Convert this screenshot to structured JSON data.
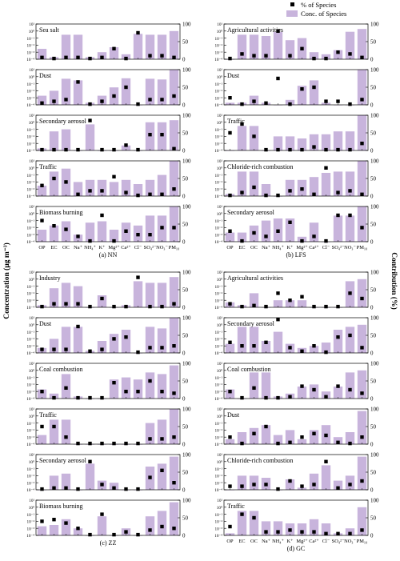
{
  "legend": {
    "pct_label": "% of Species",
    "conc_label": "Conc. of Species"
  },
  "axes": {
    "left_label": "Concentration (μg m⁻³)",
    "right_label": "Contribution (%)"
  },
  "colors": {
    "bar": "#c8b4dc",
    "marker": "#000000"
  },
  "chart_data": {
    "type": "bar",
    "categories": [
      "OP",
      "EC",
      "OC",
      "Na+",
      "NH4+",
      "K+",
      "Mg2+",
      "Ca2+",
      "Cl-",
      "SO42-",
      "NO3-",
      "PM10"
    ],
    "y_scale_left": "log",
    "ylim_left": [
      0.0001,
      10
    ],
    "left_ticks": [
      "10⁻⁴",
      "10⁻³",
      "10⁻²",
      "10⁻¹",
      "10⁰",
      "10¹"
    ],
    "ylim_right": [
      0,
      100
    ],
    "right_ticks": [
      "0",
      "50",
      "100"
    ],
    "groups": [
      {
        "caption": "(a) NN",
        "show_xlabels": true,
        "profiles": [
          {
            "name": "Sea salt",
            "conc": [
              0.003,
              0.0002,
              0.3,
              0.3,
              0.0002,
              0.001,
              0.005,
              0.0005,
              0.4,
              0.3,
              0.3,
              1.0
            ],
            "pct": [
              5,
              2,
              5,
              5,
              2,
              5,
              30,
              2,
              75,
              10,
              10,
              5
            ]
          },
          {
            "name": "Dust",
            "conc": [
              0.002,
              0.01,
              0.5,
              0.3,
              0.0002,
              0.002,
              0.03,
              0.6,
              0.0001,
              0.5,
              0.4,
              10
            ],
            "pct": [
              5,
              10,
              15,
              65,
              2,
              10,
              25,
              50,
              2,
              15,
              15,
              25
            ]
          },
          {
            "name": "Secondary aerosol",
            "conc": [
              0.0002,
              0.05,
              0.1,
              0.0001,
              0.5,
              0.0001,
              0.0001,
              0.0005,
              0.0001,
              1.0,
              1.0,
              2.0
            ],
            "pct": [
              2,
              2,
              2,
              2,
              85,
              2,
              2,
              15,
              2,
              45,
              45,
              5
            ]
          },
          {
            "name": "Traffic",
            "conc": [
              0.003,
              0.3,
              0.8,
              0.01,
              0.02,
              0.02,
              0.01,
              0.02,
              0.005,
              0.02,
              0.1,
              10
            ],
            "pct": [
              30,
              50,
              40,
              5,
              15,
              15,
              55,
              10,
              2,
              5,
              5,
              20
            ]
          },
          {
            "name": "Biomass burning",
            "conc": [
              0.005,
              0.02,
              0.08,
              0.001,
              0.05,
              0.08,
              0.005,
              0.05,
              0.02,
              0.5,
              0.5,
              10
            ],
            "pct": [
              60,
              45,
              35,
              15,
              2,
              75,
              2,
              30,
              20,
              20,
              40,
              40
            ]
          }
        ]
      },
      {
        "caption": "(b) LFS",
        "show_xlabels": true,
        "profiles": [
          {
            "name": "Agricultural activities",
            "conc": [
              0.0001,
              0.3,
              0.3,
              0.2,
              0.8,
              0.05,
              0.1,
              0.001,
              0.0005,
              0.002,
              0.8,
              2.0
            ],
            "pct": [
              2,
              15,
              10,
              10,
              80,
              10,
              30,
              2,
              2,
              20,
              15,
              5
            ]
          },
          {
            "name": "Dust",
            "conc": [
              0.0002,
              0.0002,
              0.002,
              0.0002,
              0.0001,
              0.0005,
              0.05,
              0.3,
              0.0002,
              0.0001,
              0.0001,
              10
            ],
            "pct": [
              20,
              2,
              10,
              5,
              75,
              2,
              45,
              50,
              10,
              10,
              2,
              15
            ]
          },
          {
            "name": "Traffic",
            "conc": [
              0.0001,
              0.3,
              0.3,
              0.0001,
              0.01,
              0.01,
              0.005,
              0.02,
              0.02,
              0.05,
              0.05,
              10
            ],
            "pct": [
              50,
              75,
              40,
              2,
              2,
              2,
              2,
              10,
              2,
              2,
              2,
              20
            ]
          },
          {
            "name": "Chloride-rich combustion",
            "conc": [
              0.0002,
              0.3,
              0.3,
              0.005,
              0.0001,
              0.02,
              0.02,
              0.05,
              0.2,
              0.3,
              0.3,
              10
            ],
            "pct": [
              2,
              10,
              25,
              2,
              2,
              15,
              20,
              5,
              80,
              10,
              15,
              5
            ]
          },
          {
            "name": "Secondary aerosol",
            "conc": [
              0.002,
              0.002,
              0.02,
              0.1,
              0.2,
              0.2,
              0.0005,
              0.05,
              0.0001,
              0.5,
              0.5,
              10
            ],
            "pct": [
              30,
              2,
              25,
              15,
              30,
              55,
              2,
              15,
              2,
              75,
              75,
              40
            ]
          }
        ]
      },
      {
        "caption": "(c) ZZ",
        "show_xlabels": false,
        "profiles": [
          {
            "name": "Industry",
            "conc": [
              0.0002,
              0.05,
              0.3,
              0.1,
              0.0001,
              0.005,
              0.0001,
              0.0002,
              0.5,
              0.3,
              0.3,
              2.0
            ],
            "pct": [
              2,
              10,
              10,
              10,
              2,
              25,
              2,
              2,
              85,
              2,
              2,
              10
            ]
          },
          {
            "name": "Dust",
            "conc": [
              0.0005,
              0.01,
              0.5,
              0.5,
              0.0002,
              0.005,
              0.05,
              0.2,
              0.0001,
              0.5,
              0.3,
              10
            ],
            "pct": [
              10,
              10,
              10,
              75,
              5,
              10,
              40,
              45,
              2,
              15,
              15,
              20
            ]
          },
          {
            "name": "Coal combustion",
            "conc": [
              0.002,
              0.0005,
              0.3,
              0.0002,
              0.0001,
              0.0001,
              0.05,
              0.1,
              0.05,
              0.5,
              0.3,
              5.0
            ],
            "pct": [
              20,
              2,
              30,
              2,
              2,
              2,
              45,
              20,
              20,
              50,
              20,
              15
            ]
          },
          {
            "name": "Traffic",
            "conc": [
              0.002,
              0.3,
              0.3,
              0.0001,
              0.0001,
              0.0001,
              0.0001,
              0.0001,
              0.0001,
              0.1,
              0.3,
              10
            ],
            "pct": [
              50,
              50,
              20,
              2,
              2,
              2,
              2,
              2,
              2,
              15,
              15,
              20
            ]
          },
          {
            "name": "Secondary aerosol",
            "conc": [
              0.0001,
              0.01,
              0.02,
              0.0001,
              0.5,
              0.002,
              0.001,
              0.0001,
              0.0001,
              0.2,
              0.5,
              5.0
            ],
            "pct": [
              2,
              5,
              5,
              2,
              80,
              15,
              5,
              2,
              2,
              35,
              55,
              20
            ]
          },
          {
            "name": "Biomass burning",
            "conc": [
              0.002,
              0.003,
              0.02,
              0.001,
              0.0001,
              0.05,
              0.0001,
              0.001,
              0.0001,
              0.05,
              0.3,
              5.0
            ],
            "pct": [
              40,
              45,
              35,
              20,
              2,
              60,
              2,
              10,
              2,
              15,
              25,
              20
            ]
          }
        ]
      },
      {
        "caption": "(d) GC",
        "show_xlabels": true,
        "profiles": [
          {
            "name": "Agricultural activities",
            "conc": [
              0.0005,
              0.0002,
              0.01,
              0.0001,
              0.001,
              0.001,
              0.001,
              0.0001,
              0.0001,
              0.0001,
              0.5,
              1.0
            ],
            "pct": [
              10,
              2,
              5,
              2,
              40,
              20,
              30,
              2,
              2,
              2,
              40,
              25
            ]
          },
          {
            "name": "Secondary aerosol",
            "conc": [
              0.002,
              0.5,
              0.5,
              0.005,
              0.1,
              0.002,
              0.0005,
              0.001,
              0.003,
              0.2,
              0.5,
              1.0
            ],
            "pct": [
              30,
              20,
              20,
              30,
              95,
              15,
              5,
              20,
              2,
              45,
              50,
              15
            ]
          },
          {
            "name": "Coal combustion",
            "conc": [
              0.002,
              0.0001,
              0.5,
              0.5,
              0.0002,
              0.0005,
              0.005,
              0.01,
              0.001,
              0.005,
              0.5,
              1.0
            ],
            "pct": [
              20,
              2,
              30,
              2,
              2,
              5,
              35,
              25,
              5,
              35,
              25,
              15
            ]
          },
          {
            "name": "Dust",
            "conc": [
              0.0005,
              0.005,
              0.02,
              0.05,
              0.002,
              0.01,
              0.0005,
              0.01,
              0.05,
              0.001,
              0.005,
              5.0
            ],
            "pct": [
              20,
              2,
              30,
              50,
              2,
              5,
              20,
              30,
              25,
              5,
              2,
              20
            ]
          },
          {
            "name": "Chloride-rich combustion",
            "conc": [
              0.0001,
              0.01,
              0.01,
              0.005,
              0.0001,
              0.003,
              0.0002,
              0.02,
              0.3,
              0.002,
              0.01,
              5.0
            ],
            "pct": [
              10,
              10,
              15,
              15,
              2,
              25,
              10,
              15,
              80,
              5,
              15,
              25
            ]
          },
          {
            "name": "Traffic",
            "conc": [
              0.0002,
              0.3,
              0.3,
              0.01,
              0.01,
              0.005,
              0.005,
              0.02,
              0.005,
              0.0002,
              0.001,
              1.0
            ],
            "pct": [
              25,
              60,
              50,
              10,
              10,
              15,
              10,
              10,
              5,
              5,
              5,
              15
            ]
          }
        ]
      }
    ]
  }
}
